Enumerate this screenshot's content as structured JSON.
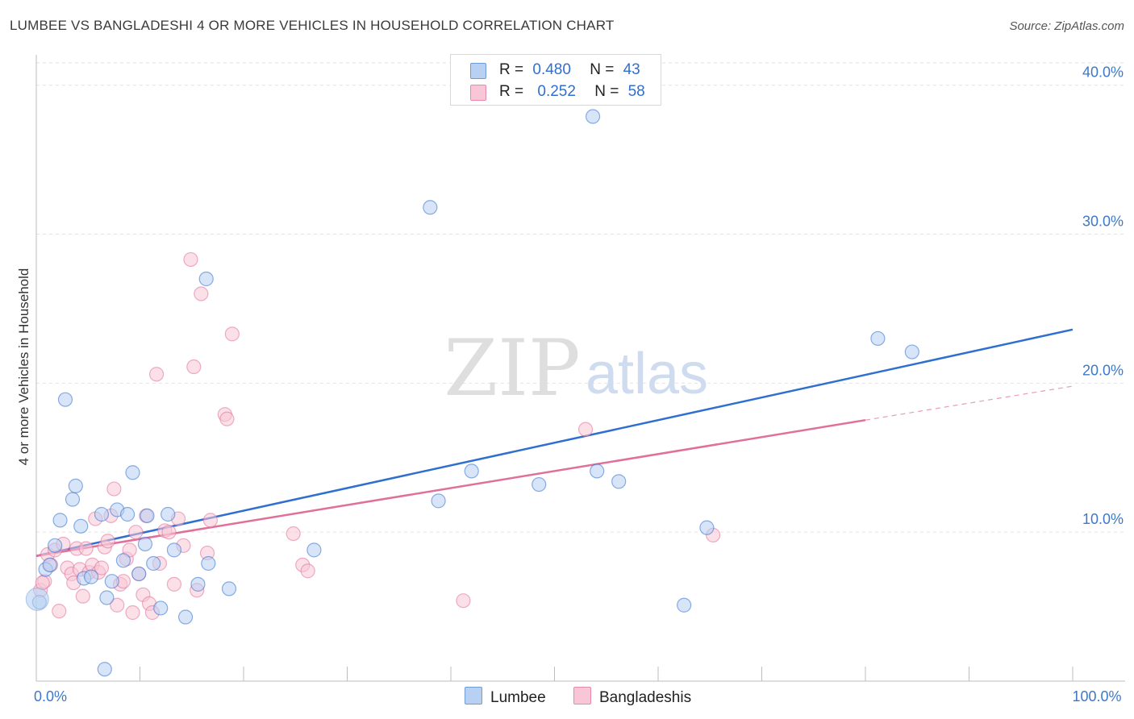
{
  "header": {
    "title": "LUMBEE VS BANGLADESHI 4 OR MORE VEHICLES IN HOUSEHOLD CORRELATION CHART",
    "source": "Source: ZipAtlas.com"
  },
  "watermark": {
    "zip": "ZIP",
    "atlas": "atlas"
  },
  "legend": {
    "rows": [
      {
        "r_label": "R =",
        "r_value": "0.480",
        "n_label": "N =",
        "n_value": "43",
        "color": "#b8d0f2"
      },
      {
        "r_label": "R =",
        "r_value": "0.252",
        "n_label": "N =",
        "n_value": "58",
        "color": "#f8c6d6"
      }
    ]
  },
  "bottom_legend": {
    "lumbee": "Lumbee",
    "bangladeshis": "Bangladeshis"
  },
  "chart_data": {
    "type": "scatter",
    "title": "LUMBEE VS BANGLADESHI 4 OR MORE VEHICLES IN HOUSEHOLD CORRELATION CHART",
    "xlabel": "",
    "ylabel": "4 or more Vehicles in Household",
    "xlim": [
      0,
      100
    ],
    "ylim": [
      0,
      41.5
    ],
    "x_tick_labels": [
      {
        "value": 0,
        "label": "0.0%"
      },
      {
        "value": 100,
        "label": "100.0%"
      }
    ],
    "y_ticks": [
      {
        "value": 10,
        "label": "10.0%"
      },
      {
        "value": 20,
        "label": "20.0%"
      },
      {
        "value": 30,
        "label": "30.0%"
      },
      {
        "value": 40,
        "label": "40.0%"
      }
    ],
    "x_minor_ticks": [
      10,
      20,
      30,
      40,
      50,
      60,
      70,
      80,
      90,
      100
    ],
    "series": [
      {
        "name": "Lumbee",
        "color": "#2f6fd0",
        "fill": "#b8d0f2",
        "trend": {
          "x0": 0,
          "y0": 8.4,
          "x1": 100,
          "y1": 23.6,
          "dash_from": null
        },
        "points": [
          [
            0.3,
            5.3
          ],
          [
            0.9,
            7.5
          ],
          [
            1.3,
            7.8
          ],
          [
            1.8,
            9.1
          ],
          [
            2.3,
            10.8
          ],
          [
            2.8,
            18.9
          ],
          [
            3.5,
            12.2
          ],
          [
            3.8,
            13.1
          ],
          [
            4.3,
            10.4
          ],
          [
            4.6,
            6.9
          ],
          [
            5.3,
            7.0
          ],
          [
            6.3,
            11.2
          ],
          [
            6.6,
            0.8
          ],
          [
            6.8,
            5.6
          ],
          [
            7.3,
            6.7
          ],
          [
            7.8,
            11.5
          ],
          [
            8.4,
            8.1
          ],
          [
            8.8,
            11.2
          ],
          [
            9.3,
            14.0
          ],
          [
            9.9,
            7.2
          ],
          [
            10.5,
            9.2
          ],
          [
            10.7,
            11.1
          ],
          [
            11.3,
            7.9
          ],
          [
            12.0,
            4.9
          ],
          [
            12.7,
            11.2
          ],
          [
            13.3,
            8.8
          ],
          [
            14.4,
            4.3
          ],
          [
            15.6,
            6.5
          ],
          [
            16.4,
            27.0
          ],
          [
            16.6,
            7.9
          ],
          [
            18.6,
            6.2
          ],
          [
            26.8,
            8.8
          ],
          [
            38.0,
            31.8
          ],
          [
            38.8,
            12.1
          ],
          [
            42.0,
            14.1
          ],
          [
            48.5,
            13.2
          ],
          [
            53.7,
            37.9
          ],
          [
            54.1,
            14.1
          ],
          [
            56.2,
            13.4
          ],
          [
            62.5,
            5.1
          ],
          [
            64.7,
            10.3
          ],
          [
            81.2,
            23.0
          ],
          [
            84.5,
            22.1
          ]
        ]
      },
      {
        "name": "Bangladeshis",
        "color": "#e0709a",
        "fill": "#f8c6d6",
        "trend": {
          "x0": 0,
          "y0": 8.4,
          "x1": 100,
          "y1": 19.8,
          "dash_from": 80.0
        },
        "points": [
          [
            0.4,
            6.1
          ],
          [
            0.8,
            6.7
          ],
          [
            1.1,
            8.5
          ],
          [
            1.4,
            7.8
          ],
          [
            1.8,
            8.8
          ],
          [
            2.2,
            4.7
          ],
          [
            2.6,
            9.2
          ],
          [
            3.0,
            7.6
          ],
          [
            3.4,
            7.2
          ],
          [
            3.6,
            6.6
          ],
          [
            3.9,
            8.9
          ],
          [
            4.2,
            7.5
          ],
          [
            4.5,
            5.7
          ],
          [
            4.8,
            8.9
          ],
          [
            5.1,
            7.3
          ],
          [
            5.4,
            7.8
          ],
          [
            5.7,
            10.9
          ],
          [
            6.0,
            7.3
          ],
          [
            6.3,
            7.6
          ],
          [
            6.6,
            9.0
          ],
          [
            6.9,
            9.4
          ],
          [
            7.2,
            11.1
          ],
          [
            7.5,
            12.9
          ],
          [
            7.8,
            5.1
          ],
          [
            8.1,
            6.5
          ],
          [
            8.4,
            6.7
          ],
          [
            8.7,
            8.2
          ],
          [
            9.0,
            8.8
          ],
          [
            9.3,
            4.6
          ],
          [
            9.6,
            10.0
          ],
          [
            9.9,
            7.2
          ],
          [
            10.3,
            5.8
          ],
          [
            10.6,
            11.1
          ],
          [
            10.9,
            5.2
          ],
          [
            11.2,
            4.6
          ],
          [
            11.6,
            20.6
          ],
          [
            11.9,
            7.9
          ],
          [
            12.4,
            10.1
          ],
          [
            12.8,
            10.0
          ],
          [
            13.3,
            6.5
          ],
          [
            13.7,
            10.9
          ],
          [
            14.2,
            9.1
          ],
          [
            14.9,
            28.3
          ],
          [
            15.2,
            21.1
          ],
          [
            15.5,
            6.1
          ],
          [
            15.9,
            26.0
          ],
          [
            16.5,
            8.6
          ],
          [
            16.8,
            10.8
          ],
          [
            18.2,
            17.9
          ],
          [
            18.4,
            17.6
          ],
          [
            18.9,
            23.3
          ],
          [
            24.8,
            9.9
          ],
          [
            25.7,
            7.8
          ],
          [
            26.2,
            7.4
          ],
          [
            41.2,
            5.4
          ],
          [
            53.0,
            16.9
          ],
          [
            65.3,
            9.8
          ],
          [
            0.6,
            6.6
          ]
        ]
      }
    ]
  }
}
